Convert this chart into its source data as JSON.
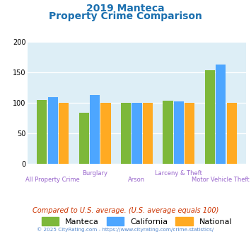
{
  "title_line1": "2019 Manteca",
  "title_line2": "Property Crime Comparison",
  "title_color": "#1a6faf",
  "categories": [
    "All Property Crime",
    "Burglary",
    "Arson",
    "Larceny & Theft",
    "Motor Vehicle Theft"
  ],
  "manteca": [
    105,
    84,
    100,
    104,
    154
  ],
  "california": [
    110,
    113,
    100,
    103,
    163
  ],
  "national": [
    100,
    100,
    100,
    100,
    100
  ],
  "color_manteca": "#7db83a",
  "color_california": "#4da6ff",
  "color_national": "#ffaa22",
  "ylim": [
    0,
    200
  ],
  "yticks": [
    0,
    50,
    100,
    150,
    200
  ],
  "bg_color": "#ddeef6",
  "note": "Compared to U.S. average. (U.S. average equals 100)",
  "note_color": "#cc3300",
  "footer": "© 2025 CityRating.com - https://www.cityrating.com/crime-statistics/",
  "footer_color": "#5588cc",
  "xlabel_color": "#9966cc",
  "xlabel_row1": [
    "All Property Crime",
    "",
    "Arson",
    "",
    "Motor Vehicle Theft"
  ],
  "xlabel_row2": [
    "",
    "Burglary",
    "",
    "Larceny & Theft",
    ""
  ],
  "legend_labels": [
    "Manteca",
    "California",
    "National"
  ]
}
